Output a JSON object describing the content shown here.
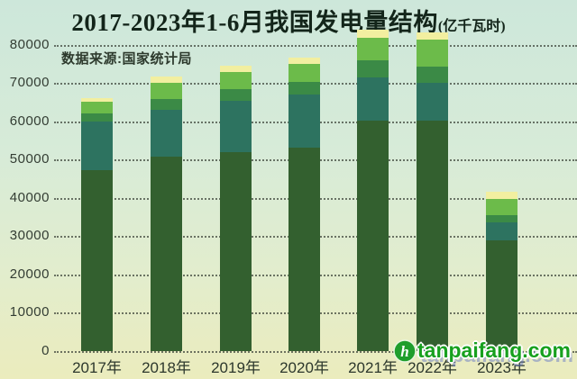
{
  "header": {
    "title": "2017-2023年1-6月我国发电量结构",
    "unit_note": "(亿千瓦时)",
    "source": "数据来源:国家统计局"
  },
  "watermark": {
    "site": "tanpaifang.com",
    "logo_glyph": "h",
    "logo_color": "#1f9e2c",
    "text_color": "#17a01e"
  },
  "colors": {
    "background_top": "#cde7da",
    "background_bottom": "#ebecbd",
    "grid": "#39402f",
    "title_text": "#13251a",
    "axis_text": "#2c372c"
  },
  "chart_data": {
    "type": "bar",
    "stacked": true,
    "title": "2017-2023年1-6月我国发电量结构",
    "unit": "亿千瓦时",
    "xlabel": "",
    "ylabel": "",
    "ylim": [
      0,
      80000
    ],
    "yticks": [
      0,
      10000,
      20000,
      30000,
      40000,
      50000,
      60000,
      70000,
      80000
    ],
    "grid": "dotted-horizontal",
    "legend": "none",
    "categories": [
      "2017年",
      "2018年",
      "2019年",
      "2020年",
      "2021年",
      "2022年",
      "2023年"
    ],
    "categories_obscured_by_watermark": [
      "2022年",
      "2023年"
    ],
    "series": [
      {
        "name": "bottom-segment-dark-green",
        "color": "#33602f",
        "values": [
          47200,
          50750,
          51950,
          53100,
          60150,
          60150,
          28800
        ]
      },
      {
        "name": "second-segment-teal-green",
        "color": "#2d7360",
        "values": [
          12700,
          12150,
          13300,
          13950,
          11400,
          9800,
          4700
        ]
      },
      {
        "name": "third-segment-mid-green",
        "color": "#3b8a46",
        "values": [
          2200,
          2900,
          3150,
          3150,
          4300,
          4300,
          1950
        ]
      },
      {
        "name": "fourth-segment-light-green",
        "color": "#6cbb4a",
        "values": [
          3000,
          4150,
          4450,
          4700,
          6050,
          7050,
          4300
        ]
      },
      {
        "name": "top-segment-pale-yellow",
        "color": "#f2efa0",
        "values": [
          950,
          1800,
          1550,
          1750,
          2050,
          1950,
          1950
        ]
      }
    ],
    "totals": [
      66050,
      71750,
      74400,
      76650,
      83950,
      83250,
      41700
    ]
  }
}
